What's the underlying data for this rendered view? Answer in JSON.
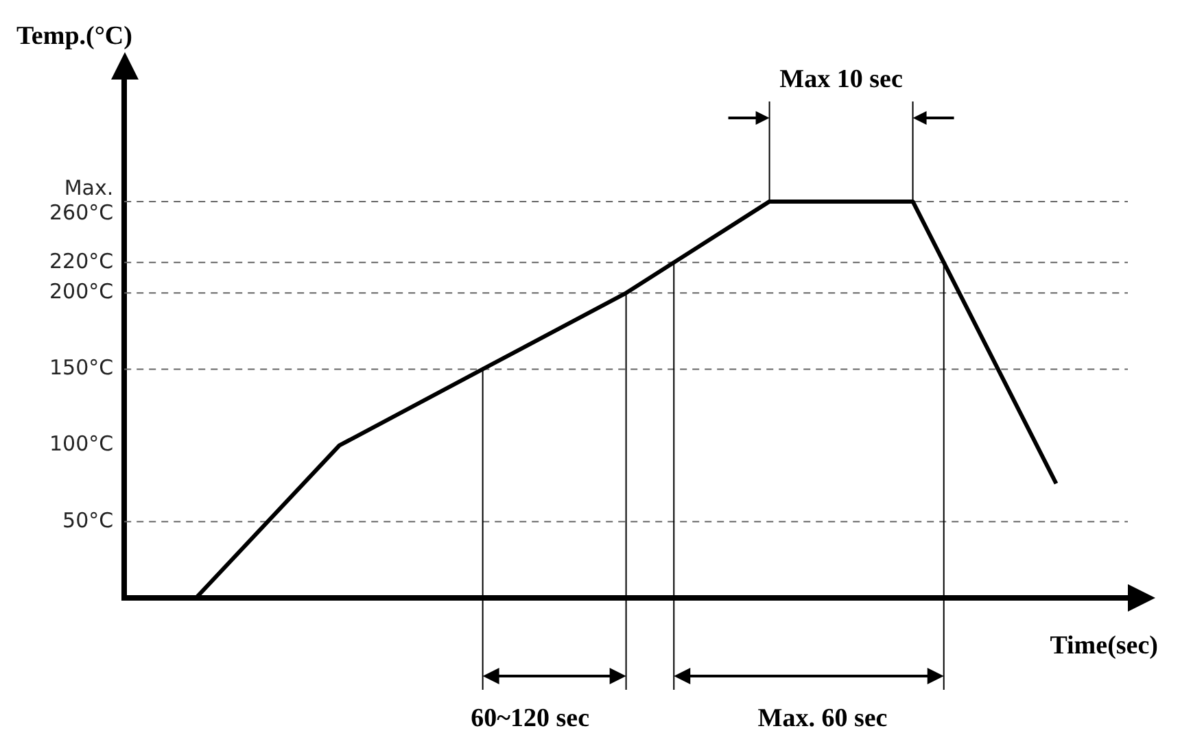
{
  "chart_data": {
    "type": "line",
    "ylabel": "Temp.(°C)",
    "xlabel": "Time(sec)",
    "categories": [
      null,
      null,
      null,
      null,
      null,
      null,
      null
    ],
    "series": [
      {
        "color": "#000000",
        "values": [
          0,
          100,
          150,
          200,
          260,
          260,
          75
        ]
      }
    ],
    "ylim": [
      0,
      340
    ],
    "yticks": [
      {
        "value": 50,
        "label": "50°C"
      },
      {
        "value": 100,
        "label": "100°C"
      },
      {
        "value": 150,
        "label": "150°C"
      },
      {
        "value": 200,
        "label": "200°C"
      },
      {
        "value": 220,
        "label": "220°C"
      },
      {
        "value": 260,
        "label": "Max.\n260°C"
      }
    ],
    "tick_labels": "y",
    "grid": false,
    "legend": false,
    "marker": "none",
    "line_style": "solid",
    "ref_lines": [
      {
        "axis": "y",
        "value": 50,
        "color": "#666666",
        "line_style": "dashed"
      },
      {
        "axis": "y",
        "value": 150,
        "color": "#666666",
        "line_style": "dashed"
      },
      {
        "axis": "y",
        "value": 200,
        "color": "#666666",
        "line_style": "dashed"
      },
      {
        "axis": "y",
        "value": 220,
        "color": "#666666",
        "line_style": "dashed"
      },
      {
        "axis": "y",
        "value": 260,
        "color": "#666666",
        "line_style": "dashed"
      }
    ],
    "annotations": [
      "Max 10 sec",
      "60~120 sec",
      "Max. 60 sec"
    ]
  }
}
